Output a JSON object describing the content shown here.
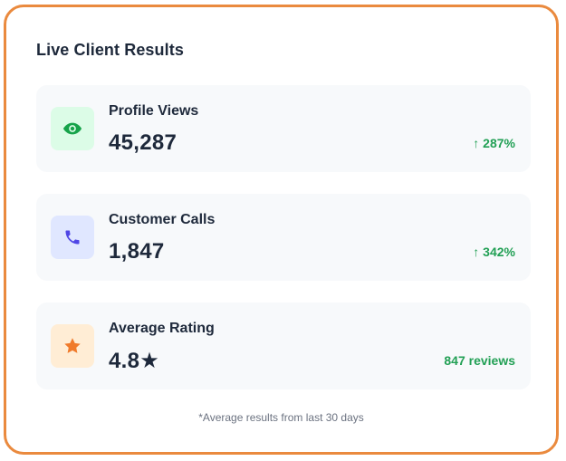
{
  "card": {
    "title": "Live Client Results",
    "border_color": "#ea8a3e"
  },
  "stats": [
    {
      "label": "Profile Views",
      "value": "45,287",
      "change": "↑ 287%",
      "icon": "eye-icon",
      "icon_color": "#16a34a",
      "icon_bg": "#dcfce7"
    },
    {
      "label": "Customer Calls",
      "value": "1,847",
      "change": "↑ 342%",
      "icon": "phone-icon",
      "icon_color": "#4f46e5",
      "icon_bg": "#e0e7ff"
    },
    {
      "label": "Average Rating",
      "value": "4.8★",
      "change": "847 reviews",
      "icon": "star-icon",
      "icon_color": "#f07a2a",
      "icon_bg": "#ffedd5"
    }
  ],
  "footnote": "*Average results from last 30 days",
  "colors": {
    "positive": "#22a055",
    "text": "#1e293b",
    "muted": "#6b7280",
    "tile_bg": "#f7f9fb"
  }
}
